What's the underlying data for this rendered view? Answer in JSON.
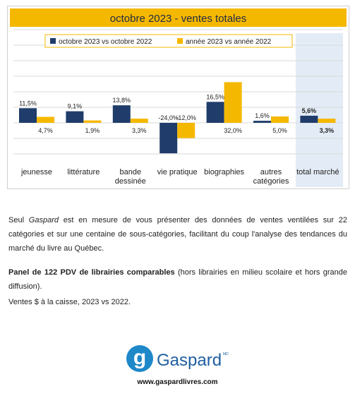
{
  "chart_data": {
    "type": "bar",
    "title": "octobre 2023 - ventes totales",
    "legend_position": "top",
    "grid": true,
    "categories": [
      [
        "jeunesse"
      ],
      [
        "littérature"
      ],
      [
        "bande",
        "dessinée"
      ],
      [
        "vie pratique"
      ],
      [
        "biographies"
      ],
      [
        "autres",
        "catégories"
      ],
      [
        "total marché"
      ]
    ],
    "series": [
      {
        "name": "octobre 2023 vs octobre 2022",
        "color": "#1f3c6b",
        "values": [
          11.5,
          9.1,
          13.8,
          -24.0,
          16.5,
          1.6,
          5.6
        ],
        "labels": [
          "11,5%",
          "9,1%",
          "13,8%",
          "-24,0%",
          "16,5%",
          "1,6%",
          "5,6%"
        ]
      },
      {
        "name": "année 2023 vs année 2022",
        "color": "#f5b800",
        "values": [
          4.7,
          1.9,
          3.3,
          -12.0,
          32.0,
          5.0,
          3.3
        ],
        "labels": [
          "4,7%",
          "1,9%",
          "3,3%",
          "-12,0%",
          "32,0%",
          "5,0%",
          "3,3%"
        ]
      }
    ],
    "highlight_category": "total marché",
    "colors": {
      "title_bg": "#f5b800",
      "highlight_bg": "#e3ecf6",
      "grid": "#d9d9d9"
    }
  },
  "text": {
    "p1_pre": "Seul ",
    "p1_em": "Gaspard",
    "p1_post": " est en mesure de vous présenter des données de ventes ventilées sur 22 catégories et sur une centaine de sous-catégories, facilitant du coup l'analyse des tendances du marché du livre au Québec.",
    "p2_bold": "Panel de 122 PDV de librairies comparables",
    "p2_rest": " (hors librairies en milieu scolaire et hors grande diffusion).",
    "p3": "Ventes $ à la caisse, 2023 vs 2022."
  },
  "logo": {
    "letter": "g",
    "name": "Gaspard",
    "mark": "MD"
  },
  "website": "www.gaspardlivres.com"
}
